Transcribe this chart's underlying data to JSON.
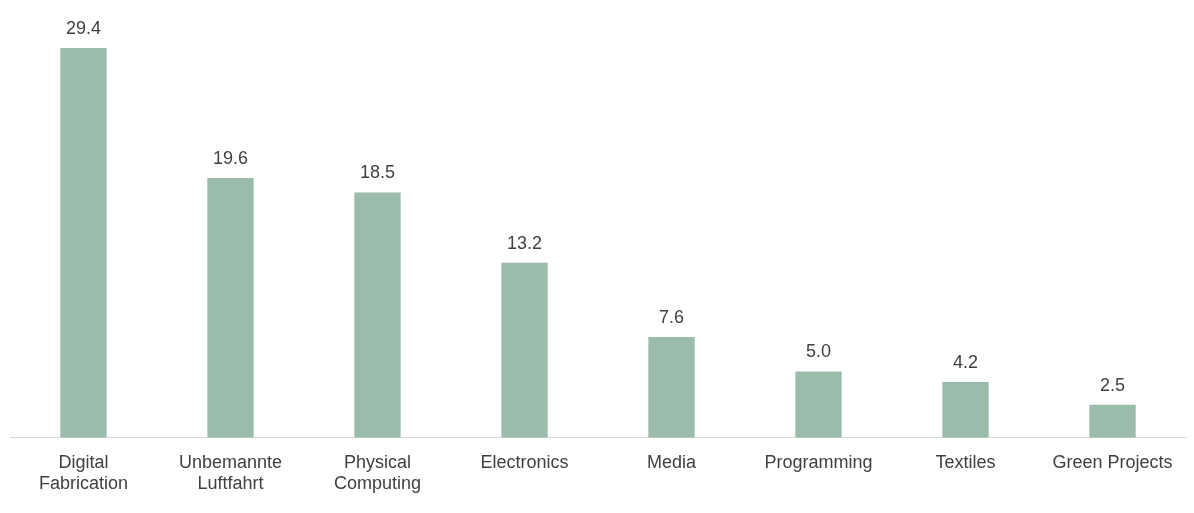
{
  "chart_data": {
    "type": "bar",
    "categories": [
      "Digital Fabrication",
      "Unbemannte Luftfahrt",
      "Physical Computing",
      "Electronics",
      "Media",
      "Programming",
      "Textiles",
      "Green Projects"
    ],
    "values": [
      29.4,
      19.6,
      18.5,
      13.2,
      7.6,
      5.0,
      4.2,
      2.5
    ],
    "value_labels": [
      "29.4",
      "19.6",
      "18.5",
      "13.2",
      "7.6",
      "5.0",
      "4.2",
      "2.5"
    ],
    "color": "#9bbcab"
  }
}
